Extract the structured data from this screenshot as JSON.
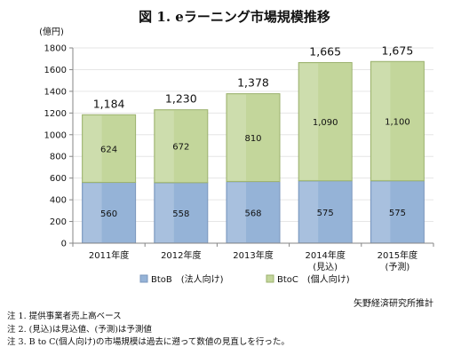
{
  "title": "図 1. eラーニング市場規模推移",
  "source": "矢野経済研究所推計",
  "notes": [
    "注 1.  提供事業者売上高ベース",
    "注 2.  (見込)は見込値、(予測)は予測値",
    "注 3. B to C(個人向け)の市場規模は過去に遡って数値の見直しを行った。"
  ],
  "colors": {
    "btob": "#95b3d7",
    "btoc": "#c3d69b",
    "axis": "#868686",
    "grid": "#e6e6e6"
  },
  "chart_data": {
    "type": "bar",
    "stacked": true,
    "unit_label": "(億円)",
    "categories": [
      [
        "2011年度"
      ],
      [
        "2012年度"
      ],
      [
        "2013年度"
      ],
      [
        "2014年度",
        "(見込)"
      ],
      [
        "2015年度",
        "(予測)"
      ]
    ],
    "series": [
      {
        "name": "BtoB　(法人向け)",
        "values": [
          560,
          558,
          568,
          575,
          575
        ]
      },
      {
        "name": "BtoC　(個人向け)",
        "values": [
          624,
          672,
          810,
          1090,
          1100
        ]
      }
    ],
    "value_labels": {
      "btob": [
        "560",
        "558",
        "568",
        "575",
        "575"
      ],
      "btoc": [
        "624",
        "672",
        "810",
        "1,090",
        "1,100"
      ]
    },
    "totals": [
      "1,184",
      "1,230",
      "1,378",
      "1,665",
      "1,675"
    ],
    "ylim": [
      0,
      1800
    ],
    "yticks": [
      0,
      200,
      400,
      600,
      800,
      1000,
      1200,
      1400,
      1600,
      1800
    ],
    "grid": true,
    "legend_position": "bottom"
  }
}
